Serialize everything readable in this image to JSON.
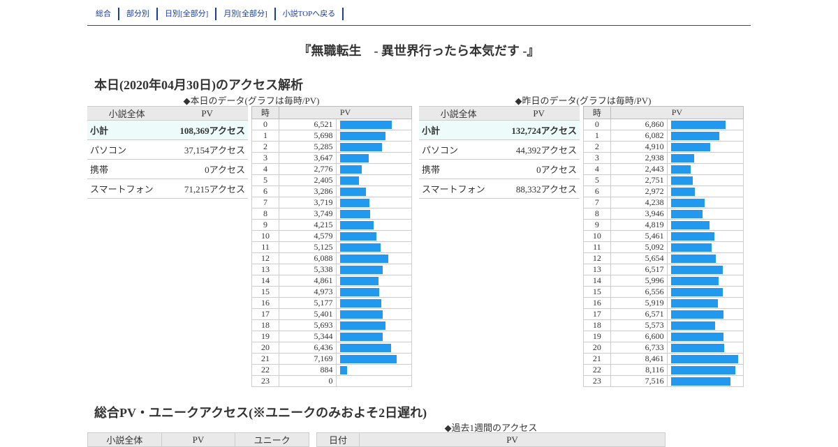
{
  "nav": [
    "総合",
    "部分別",
    "日別[全部分]",
    "月別[全部分]",
    "小説TOPへ戻る"
  ],
  "novel_title": "『無職転生　- 異世界行ったら本気だす -』",
  "today_heading": "本日(2020年04月30日)のアクセス解析",
  "today_caption": "◆本日のデータ(グラフは毎時/PV)",
  "yesterday_caption": "◆昨日のデータ(グラフは毎時/PV)",
  "summary_headers": [
    "小説全体",
    "PV"
  ],
  "hourly_headers": [
    "時",
    "PV"
  ],
  "today_summary": [
    {
      "label": "小計",
      "value": "108,369アクセス"
    },
    {
      "label": "パソコン",
      "value": "37,154アクセス"
    },
    {
      "label": "携帯",
      "value": "0アクセス"
    },
    {
      "label": "スマートフォン",
      "value": "71,215アクセス"
    }
  ],
  "yesterday_summary": [
    {
      "label": "小計",
      "value": "132,724アクセス"
    },
    {
      "label": "パソコン",
      "value": "44,392アクセス"
    },
    {
      "label": "携帯",
      "value": "0アクセス"
    },
    {
      "label": "スマートフォン",
      "value": "88,332アクセス"
    }
  ],
  "chart_data": [
    {
      "type": "bar",
      "x": [
        0,
        1,
        2,
        3,
        4,
        5,
        6,
        7,
        8,
        9,
        10,
        11,
        12,
        13,
        14,
        15,
        16,
        17,
        18,
        19,
        20,
        21,
        22,
        23
      ],
      "values": [
        6521,
        5698,
        5285,
        3647,
        2776,
        2405,
        3286,
        3719,
        3749,
        4215,
        4579,
        5125,
        6088,
        5338,
        4861,
        4973,
        5177,
        5401,
        5693,
        5344,
        6436,
        7169,
        884,
        0
      ],
      "labels": [
        "6,521",
        "5,698",
        "5,285",
        "3,647",
        "2,776",
        "2,405",
        "3,286",
        "3,719",
        "3,749",
        "4,215",
        "4,579",
        "5,125",
        "6,088",
        "5,338",
        "4,861",
        "4,973",
        "5,177",
        "5,401",
        "5,693",
        "5,344",
        "6,436",
        "7,169",
        "884",
        "0"
      ]
    },
    {
      "type": "bar",
      "x": [
        0,
        1,
        2,
        3,
        4,
        5,
        6,
        7,
        8,
        9,
        10,
        11,
        12,
        13,
        14,
        15,
        16,
        17,
        18,
        19,
        20,
        21,
        22,
        23
      ],
      "values": [
        6860,
        6082,
        4910,
        2938,
        2443,
        2751,
        2972,
        4238,
        3946,
        4819,
        5461,
        5092,
        5654,
        6517,
        5996,
        6556,
        5919,
        6571,
        5573,
        6600,
        6733,
        8461,
        8116,
        7516
      ],
      "labels": [
        "6,860",
        "6,082",
        "4,910",
        "2,938",
        "2,443",
        "2,751",
        "2,972",
        "4,238",
        "3,946",
        "4,819",
        "5,461",
        "5,092",
        "5,654",
        "6,517",
        "5,996",
        "6,556",
        "5,919",
        "6,571",
        "5,573",
        "6,600",
        "6,733",
        "8,461",
        "8,116",
        "7,516"
      ]
    }
  ],
  "total_heading": "総合PV・ユニークアクセス(※ユニークのみおよそ2日遅れ)",
  "week_caption": "◆過去1週間のアクセス",
  "total_headers": [
    "小説全体",
    "PV",
    "ユニーク"
  ],
  "week_headers": [
    "日付",
    "PV"
  ]
}
